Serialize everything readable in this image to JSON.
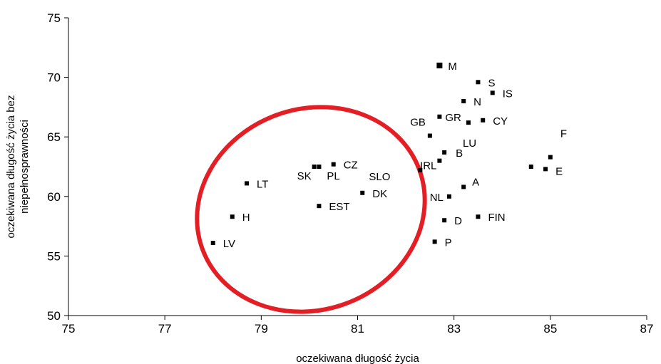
{
  "chart_data": {
    "type": "scatter",
    "xlabel": "oczekiwana długość życia",
    "ylabel_lines": [
      "oczekiwana długość życia bez",
      "niepełnosprawności"
    ],
    "xlim": [
      75,
      87
    ],
    "ylim": [
      50,
      75
    ],
    "x_ticks": [
      75,
      77,
      79,
      81,
      83,
      85,
      87
    ],
    "y_ticks": [
      50,
      55,
      60,
      65,
      70,
      75
    ],
    "grid": false,
    "legend": "none",
    "marker_color": "#000000",
    "annotation": {
      "type": "ellipse",
      "color": "#e31e24",
      "note": "highlighted cluster"
    },
    "points": [
      {
        "label": "M",
        "x": 82.7,
        "y": 71.0
      },
      {
        "label": "S",
        "x": 83.5,
        "y": 69.6
      },
      {
        "label": "IS",
        "x": 83.8,
        "y": 68.7
      },
      {
        "label": "N",
        "x": 83.2,
        "y": 68.0
      },
      {
        "label": "GB",
        "x": 82.5,
        "y": 65.1
      },
      {
        "label": "GR",
        "x": 82.7,
        "y": 66.7
      },
      {
        "label": "CY",
        "x": 83.6,
        "y": 66.4
      },
      {
        "label": "LU",
        "x": 83.3,
        "y": 66.2
      },
      {
        "label": "F",
        "x": 85.0,
        "y": 63.3
      },
      {
        "label": "E",
        "x": 84.9,
        "y": 62.3
      },
      {
        "label": "",
        "x": 84.6,
        "y": 62.5
      },
      {
        "label": "IRL",
        "x": 82.7,
        "y": 63.0
      },
      {
        "label": "B",
        "x": 82.8,
        "y": 63.7
      },
      {
        "label": "SLO",
        "x": 82.3,
        "y": 62.2
      },
      {
        "label": "A",
        "x": 83.2,
        "y": 60.8
      },
      {
        "label": "NL",
        "x": 82.9,
        "y": 60.0
      },
      {
        "label": "FIN",
        "x": 83.5,
        "y": 58.3
      },
      {
        "label": "D",
        "x": 82.8,
        "y": 58.0
      },
      {
        "label": "P",
        "x": 82.6,
        "y": 56.2
      },
      {
        "label": "LT",
        "x": 78.7,
        "y": 61.1
      },
      {
        "label": "SK",
        "x": 80.1,
        "y": 62.5
      },
      {
        "label": "PL",
        "x": 80.2,
        "y": 62.5
      },
      {
        "label": "CZ",
        "x": 80.5,
        "y": 62.7
      },
      {
        "label": "DK",
        "x": 81.1,
        "y": 60.3
      },
      {
        "label": "EST",
        "x": 80.2,
        "y": 59.2
      },
      {
        "label": "H",
        "x": 78.4,
        "y": 58.3
      },
      {
        "label": "LV",
        "x": 78.0,
        "y": 56.1
      }
    ]
  }
}
